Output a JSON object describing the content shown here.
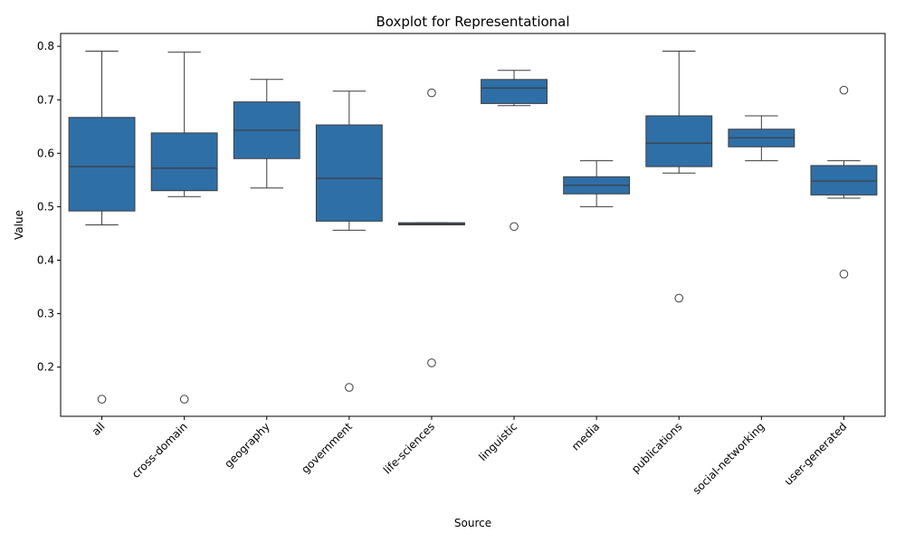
{
  "chart_data": {
    "type": "boxplot",
    "title": "Boxplot for Representational",
    "xlabel": "Source",
    "ylabel": "Value",
    "ylim": [
      0.108,
      0.824
    ],
    "yticks": [
      0.2,
      0.3,
      0.4,
      0.5,
      0.6,
      0.7,
      0.8
    ],
    "ytick_labels": [
      "0.2",
      "0.3",
      "0.4",
      "0.5",
      "0.6",
      "0.7",
      "0.8"
    ],
    "box_color": "#2f6fa7",
    "line_color": "#3d3d3d",
    "grid": false,
    "categories": [
      "all",
      "cross-domain",
      "geography",
      "government",
      "life-sciences",
      "linguistic",
      "media",
      "publications",
      "social-networking",
      "user-generated"
    ],
    "boxes": [
      {
        "category": "all",
        "whisker_low": 0.466,
        "q1": 0.492,
        "median": 0.575,
        "q3": 0.667,
        "whisker_high": 0.791,
        "outliers": [
          0.14
        ]
      },
      {
        "category": "cross-domain",
        "whisker_low": 0.519,
        "q1": 0.53,
        "median": 0.572,
        "q3": 0.638,
        "whisker_high": 0.789,
        "outliers": [
          0.14
        ]
      },
      {
        "category": "geography",
        "whisker_low": 0.535,
        "q1": 0.59,
        "median": 0.643,
        "q3": 0.696,
        "whisker_high": 0.738,
        "outliers": []
      },
      {
        "category": "government",
        "whisker_low": 0.456,
        "q1": 0.473,
        "median": 0.553,
        "q3": 0.653,
        "whisker_high": 0.716,
        "outliers": [
          0.162
        ]
      },
      {
        "category": "life-sciences",
        "whisker_low": 0.466,
        "q1": 0.466,
        "median": 0.468,
        "q3": 0.47,
        "whisker_high": 0.47,
        "outliers": [
          0.713,
          0.208
        ]
      },
      {
        "category": "linguistic",
        "whisker_low": 0.689,
        "q1": 0.693,
        "median": 0.722,
        "q3": 0.738,
        "whisker_high": 0.755,
        "outliers": [
          0.463
        ]
      },
      {
        "category": "media",
        "whisker_low": 0.5,
        "q1": 0.524,
        "median": 0.54,
        "q3": 0.556,
        "whisker_high": 0.586,
        "outliers": []
      },
      {
        "category": "publications",
        "whisker_low": 0.563,
        "q1": 0.575,
        "median": 0.619,
        "q3": 0.67,
        "whisker_high": 0.791,
        "outliers": [
          0.329
        ]
      },
      {
        "category": "social-networking",
        "whisker_low": 0.586,
        "q1": 0.612,
        "median": 0.629,
        "q3": 0.645,
        "whisker_high": 0.67,
        "outliers": []
      },
      {
        "category": "user-generated",
        "whisker_low": 0.516,
        "q1": 0.522,
        "median": 0.548,
        "q3": 0.577,
        "whisker_high": 0.586,
        "outliers": [
          0.718,
          0.374
        ]
      }
    ]
  }
}
